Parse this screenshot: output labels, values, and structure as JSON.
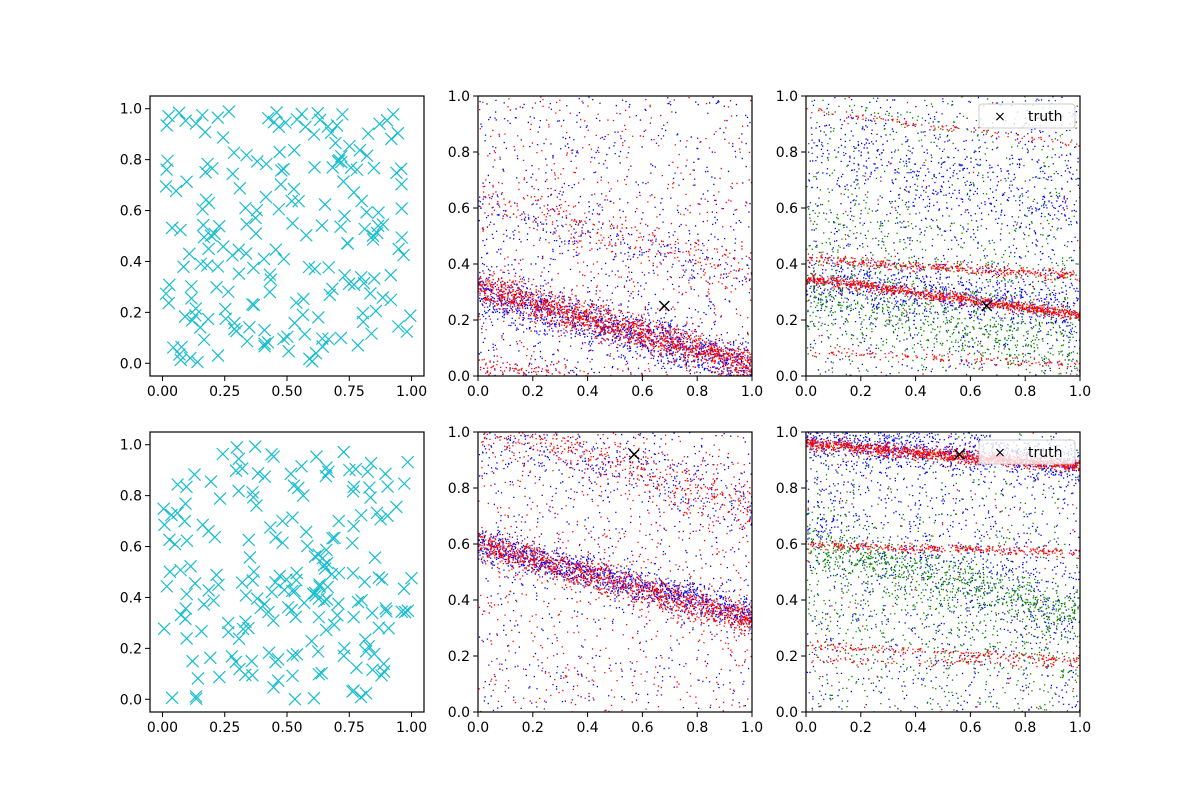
{
  "figure": {
    "background": "#ffffff"
  },
  "chart_data": [
    {
      "id": "top-left",
      "type": "scatter",
      "marker": "x",
      "color": "#17becf",
      "xlim": [
        -0.05,
        1.05
      ],
      "ylim": [
        -0.05,
        1.05
      ],
      "xticks": [
        "0.00",
        "0.25",
        "0.50",
        "0.75",
        "1.00"
      ],
      "yticks": [
        "0.0",
        "0.2",
        "0.4",
        "0.6",
        "0.8",
        "1.0"
      ],
      "npoints": 200
    },
    {
      "id": "top-middle",
      "type": "scatter",
      "marker": "dot",
      "xlim": [
        0,
        1
      ],
      "ylim": [
        0,
        1
      ],
      "xticks": [
        "0.0",
        "0.2",
        "0.4",
        "0.6",
        "0.8",
        "1.0"
      ],
      "yticks": [
        "0.0",
        "0.2",
        "0.4",
        "0.6",
        "0.8",
        "1.0"
      ],
      "series": [
        {
          "name": "blue",
          "color": "#0000ff",
          "bands": [
            [
              0.3,
              -0.26,
              0.045,
              1200
            ],
            [
              0.04,
              -0.3,
              0.06,
              120
            ],
            [
              0.62,
              -0.27,
              0.05,
              180
            ]
          ],
          "noise": 700
        },
        {
          "name": "red",
          "color": "#ff0000",
          "bands": [
            [
              0.32,
              -0.28,
              0.03,
              1600
            ],
            [
              0.65,
              -0.29,
              0.04,
              250
            ],
            [
              0.03,
              -0.08,
              0.02,
              250
            ]
          ],
          "noise": 500
        }
      ],
      "truth": {
        "x": 0.68,
        "y": 0.25
      }
    },
    {
      "id": "top-right",
      "type": "scatter",
      "marker": "dot",
      "xlim": [
        0,
        1
      ],
      "ylim": [
        0,
        1
      ],
      "xticks": [
        "0.0",
        "0.2",
        "0.4",
        "0.6",
        "0.8",
        "1.0"
      ],
      "yticks": [
        "0.0",
        "0.2",
        "0.4",
        "0.6",
        "0.8",
        "1.0"
      ],
      "series": [
        {
          "name": "blue",
          "color": "#0000ff",
          "bands": [
            [
              0.34,
              -0.1,
              0.05,
              700
            ],
            [
              0.8,
              -0.2,
              0.08,
              400
            ]
          ],
          "noise": 800
        },
        {
          "name": "green",
          "color": "#008000",
          "bands": [
            [
              0.28,
              -0.2,
              0.06,
              500
            ],
            [
              0.5,
              -0.25,
              0.12,
              300
            ]
          ],
          "noise": 700
        },
        {
          "name": "red",
          "color": "#ff0000",
          "bands": [
            [
              0.35,
              -0.13,
              0.01,
              900
            ],
            [
              0.42,
              -0.06,
              0.01,
              400
            ],
            [
              0.09,
              -0.05,
              0.01,
              150
            ],
            [
              0.95,
              -0.12,
              0.008,
              100
            ]
          ],
          "noise": 60
        }
      ],
      "truth": {
        "x": 0.66,
        "y": 0.25
      },
      "legend": {
        "label": "truth",
        "loc": "upper right"
      }
    },
    {
      "id": "bottom-left",
      "type": "scatter",
      "marker": "x",
      "color": "#17becf",
      "xlim": [
        -0.05,
        1.05
      ],
      "ylim": [
        -0.05,
        1.05
      ],
      "xticks": [
        "0.00",
        "0.25",
        "0.50",
        "0.75",
        "1.00"
      ],
      "yticks": [
        "0.0",
        "0.2",
        "0.4",
        "0.6",
        "0.8",
        "1.0"
      ],
      "npoints": 200
    },
    {
      "id": "bottom-middle",
      "type": "scatter",
      "marker": "dot",
      "xlim": [
        0,
        1
      ],
      "ylim": [
        0,
        1
      ],
      "xticks": [
        "0.0",
        "0.2",
        "0.4",
        "0.6",
        "0.8",
        "1.0"
      ],
      "yticks": [
        "0.0",
        "0.2",
        "0.4",
        "0.6",
        "0.8",
        "1.0"
      ],
      "series": [
        {
          "name": "blue",
          "color": "#0000ff",
          "bands": [
            [
              0.6,
              -0.25,
              0.03,
              1200
            ],
            [
              1.0,
              -0.25,
              0.06,
              300
            ]
          ],
          "noise": 600
        },
        {
          "name": "red",
          "color": "#ff0000",
          "bands": [
            [
              0.6,
              -0.27,
              0.03,
              1300
            ],
            [
              1.05,
              -0.32,
              0.05,
              500
            ]
          ],
          "noise": 600
        }
      ],
      "truth": {
        "x": 0.57,
        "y": 0.92
      }
    },
    {
      "id": "bottom-right",
      "type": "scatter",
      "marker": "dot",
      "xlim": [
        0,
        1
      ],
      "ylim": [
        0,
        1
      ],
      "xticks": [
        "0.0",
        "0.2",
        "0.4",
        "0.6",
        "0.8",
        "1.0"
      ],
      "yticks": [
        "0.0",
        "0.2",
        "0.4",
        "0.6",
        "0.8",
        "1.0"
      ],
      "series": [
        {
          "name": "blue",
          "color": "#0000ff",
          "bands": [
            [
              0.98,
              -0.1,
              0.04,
              900
            ],
            [
              0.75,
              -0.4,
              0.1,
              400
            ]
          ],
          "noise": 800
        },
        {
          "name": "green",
          "color": "#008000",
          "bands": [
            [
              0.6,
              -0.25,
              0.04,
              700
            ],
            [
              0.4,
              -0.2,
              0.1,
              300
            ]
          ],
          "noise": 700
        },
        {
          "name": "red",
          "color": "#ff0000",
          "bands": [
            [
              0.96,
              -0.08,
              0.012,
              1200
            ],
            [
              0.6,
              -0.03,
              0.008,
              350
            ],
            [
              0.19,
              -0.02,
              0.008,
              100
            ],
            [
              0.24,
              -0.05,
              0.008,
              200
            ]
          ],
          "noise": 80
        }
      ],
      "truth": {
        "x": 0.56,
        "y": 0.92
      },
      "legend": {
        "label": "truth",
        "loc": "upper right"
      }
    }
  ]
}
